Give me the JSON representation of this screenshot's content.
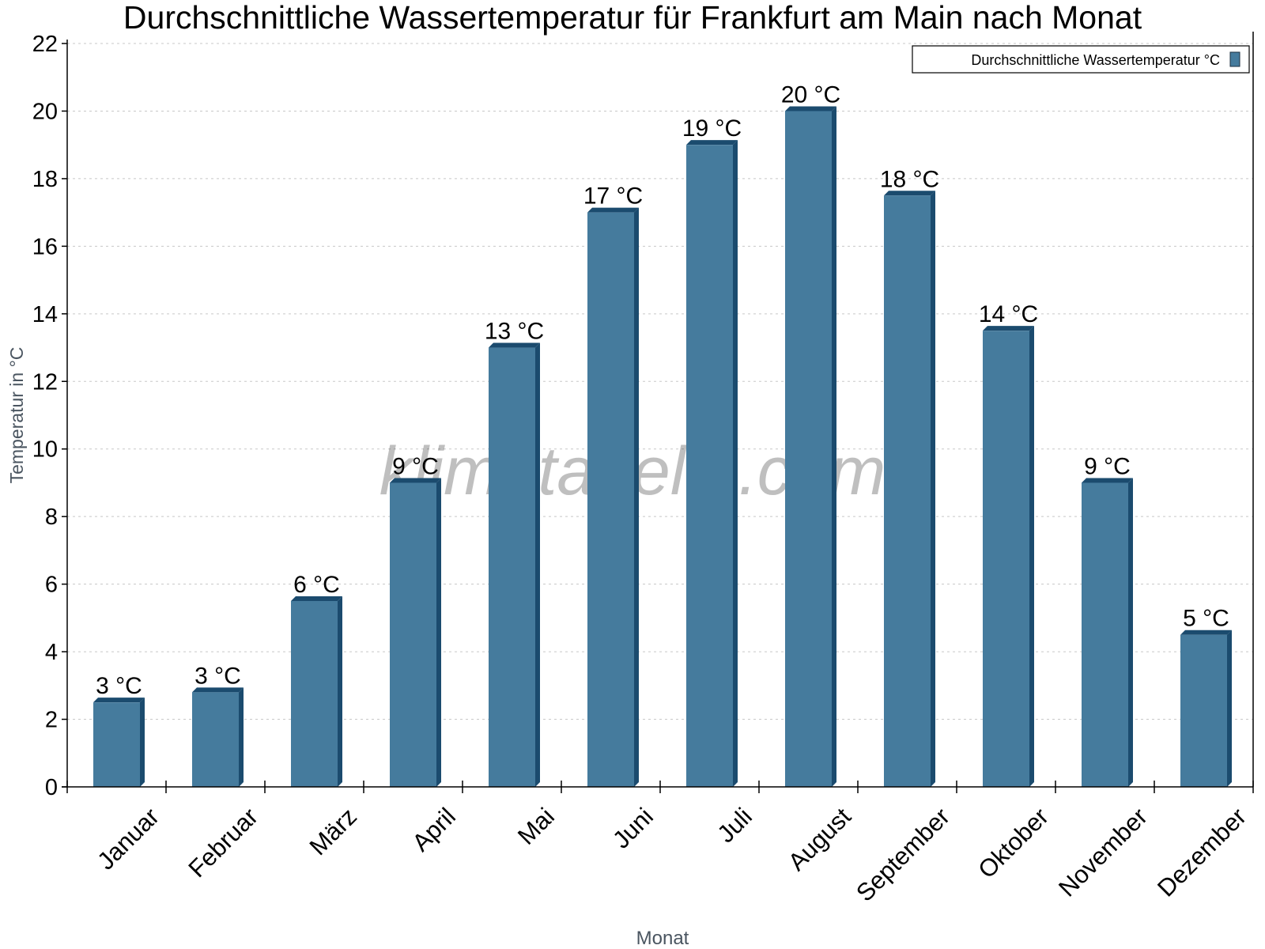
{
  "chart_data": {
    "type": "bar",
    "title": "Durchschnittliche Wassertemperatur für Frankfurt am Main nach Monat",
    "xlabel": "Monat",
    "ylabel": "Temperatur in °C",
    "ylim": [
      0,
      22
    ],
    "yticks": [
      0,
      2,
      4,
      6,
      8,
      10,
      12,
      14,
      16,
      18,
      20,
      22
    ],
    "grid": true,
    "legend_placement": "top-right",
    "watermark": "klimatabelle.com",
    "categories": [
      "Januar",
      "Februar",
      "März",
      "April",
      "Mai",
      "Juni",
      "Juli",
      "August",
      "September",
      "Oktober",
      "November",
      "Dezember"
    ],
    "series": [
      {
        "name": "Durchschnittliche Wassertemperatur °C",
        "color": "#457b9d",
        "side_color": "#1b4b6e",
        "values": [
          2.5,
          2.8,
          5.5,
          9,
          13,
          17,
          19,
          20,
          17.5,
          13.5,
          9,
          4.5
        ],
        "labels": [
          "3 °C",
          "3 °C",
          "6 °C",
          "9 °C",
          "13 °C",
          "17 °C",
          "19 °C",
          "20 °C",
          "18 °C",
          "14 °C",
          "9 °C",
          "5 °C"
        ]
      }
    ]
  }
}
